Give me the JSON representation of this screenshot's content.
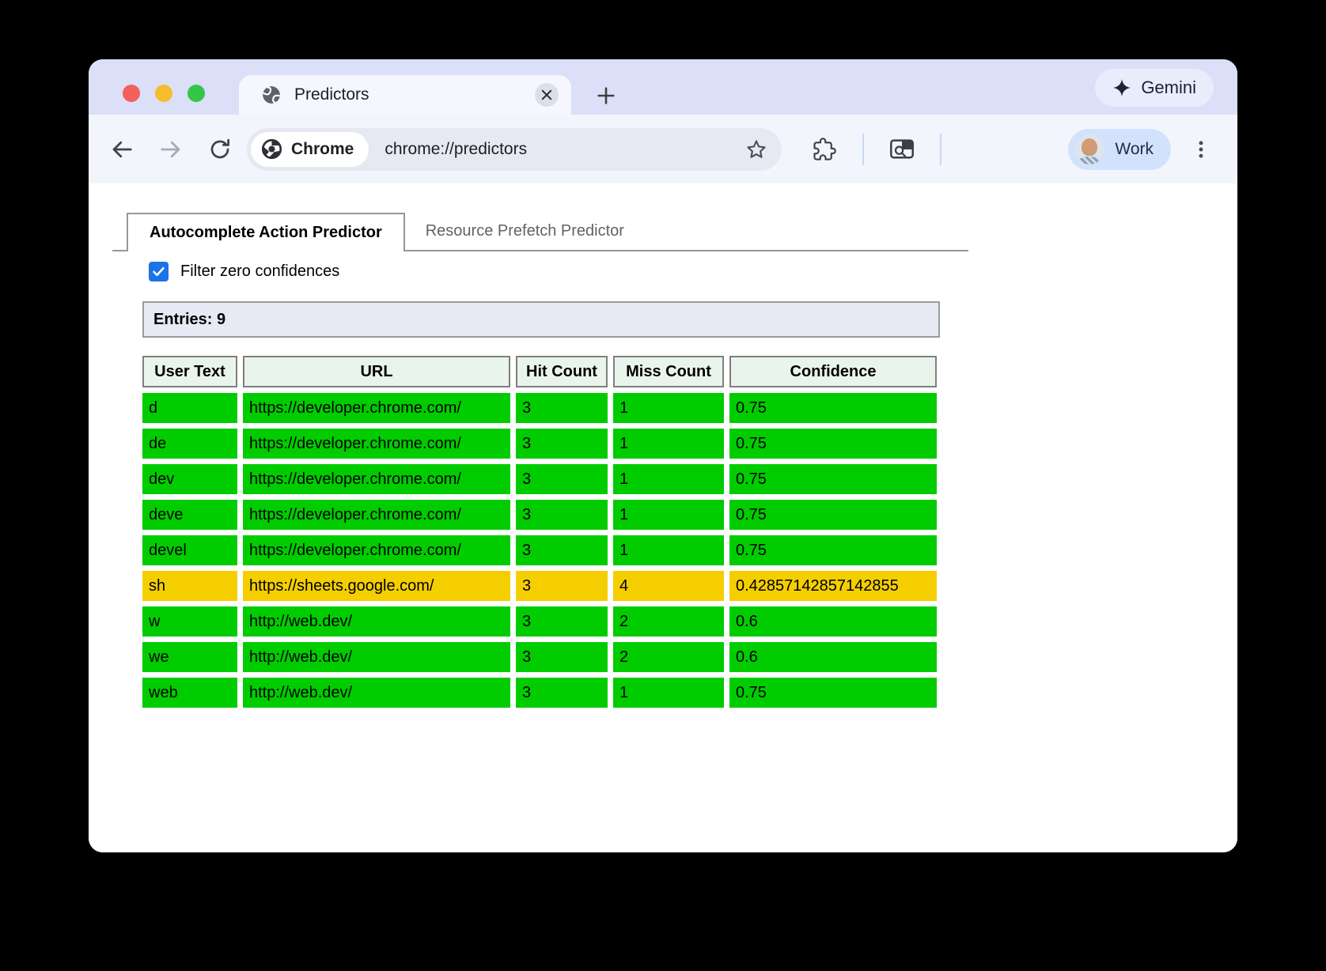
{
  "browser": {
    "tab": {
      "title": "Predictors"
    },
    "new_tab_tooltip": "+",
    "gemini_label": "Gemini",
    "address": {
      "chip_label": "Chrome",
      "url": "chrome://predictors"
    },
    "profile_label": "Work"
  },
  "page": {
    "tabs": [
      {
        "label": "Autocomplete Action Predictor",
        "active": true
      },
      {
        "label": "Resource Prefetch Predictor",
        "active": false
      }
    ],
    "filter_checkbox": {
      "label": "Filter zero confidences",
      "checked": true
    },
    "entries_label": "Entries: 9",
    "colors": {
      "green": "#00CC00",
      "yellow": "#F5CE00",
      "header_bg": "#E9F5EC",
      "entries_bg": "#E7E9F5",
      "checkbox_blue": "#1A73E8"
    },
    "table": {
      "headers": [
        "User Text",
        "URL",
        "Hit Count",
        "Miss Count",
        "Confidence"
      ],
      "rows": [
        {
          "user_text": "d",
          "url": "https://developer.chrome.com/",
          "hit_count": "3",
          "miss_count": "1",
          "confidence": "0.75",
          "color": "green"
        },
        {
          "user_text": "de",
          "url": "https://developer.chrome.com/",
          "hit_count": "3",
          "miss_count": "1",
          "confidence": "0.75",
          "color": "green"
        },
        {
          "user_text": "dev",
          "url": "https://developer.chrome.com/",
          "hit_count": "3",
          "miss_count": "1",
          "confidence": "0.75",
          "color": "green"
        },
        {
          "user_text": "deve",
          "url": "https://developer.chrome.com/",
          "hit_count": "3",
          "miss_count": "1",
          "confidence": "0.75",
          "color": "green"
        },
        {
          "user_text": "devel",
          "url": "https://developer.chrome.com/",
          "hit_count": "3",
          "miss_count": "1",
          "confidence": "0.75",
          "color": "green"
        },
        {
          "user_text": "sh",
          "url": "https://sheets.google.com/",
          "hit_count": "3",
          "miss_count": "4",
          "confidence": "0.42857142857142855",
          "color": "yellow"
        },
        {
          "user_text": "w",
          "url": "http://web.dev/",
          "hit_count": "3",
          "miss_count": "2",
          "confidence": "0.6",
          "color": "green"
        },
        {
          "user_text": "we",
          "url": "http://web.dev/",
          "hit_count": "3",
          "miss_count": "2",
          "confidence": "0.6",
          "color": "green"
        },
        {
          "user_text": "web",
          "url": "http://web.dev/",
          "hit_count": "3",
          "miss_count": "1",
          "confidence": "0.75",
          "color": "green"
        }
      ]
    }
  }
}
